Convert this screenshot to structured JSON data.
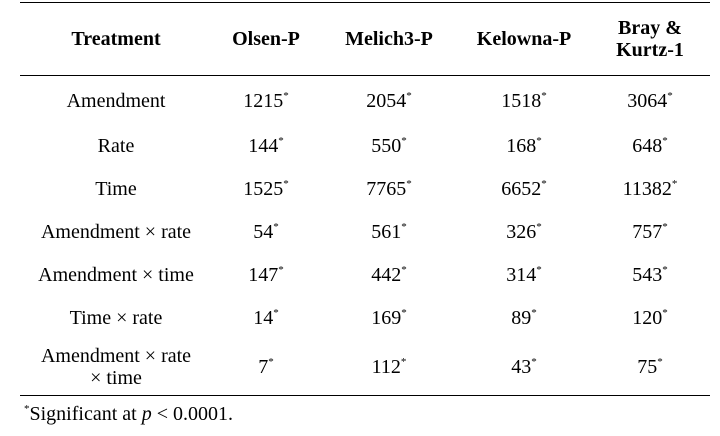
{
  "table": {
    "headers": [
      "Treatment",
      "Olsen-P",
      "Melich3-P",
      "Kelowna-P",
      "Bray & Kurtz-1"
    ],
    "rows": [
      {
        "treatment": "Amendment",
        "values": [
          "1215",
          "2054",
          "1518",
          "3064"
        ]
      },
      {
        "treatment": "Rate",
        "values": [
          "144",
          "550",
          "168",
          "648"
        ]
      },
      {
        "treatment": "Time",
        "values": [
          "1525",
          "7765",
          "6652",
          "11382"
        ]
      },
      {
        "treatment": "Amendment × rate",
        "values": [
          "54",
          "561",
          "326",
          "757"
        ]
      },
      {
        "treatment": "Amendment × time",
        "values": [
          "147",
          "442",
          "314",
          "543"
        ]
      },
      {
        "treatment": "Time × rate",
        "values": [
          "14",
          "169",
          "89",
          "120"
        ]
      },
      {
        "treatment": "Amendment × rate × time",
        "values": [
          "7",
          "112",
          "43",
          "75"
        ]
      }
    ],
    "significance_mark": "*"
  },
  "footnote": {
    "mark": "*",
    "prefix": "Significant at ",
    "p": "p",
    "suffix": " < 0.0001."
  }
}
